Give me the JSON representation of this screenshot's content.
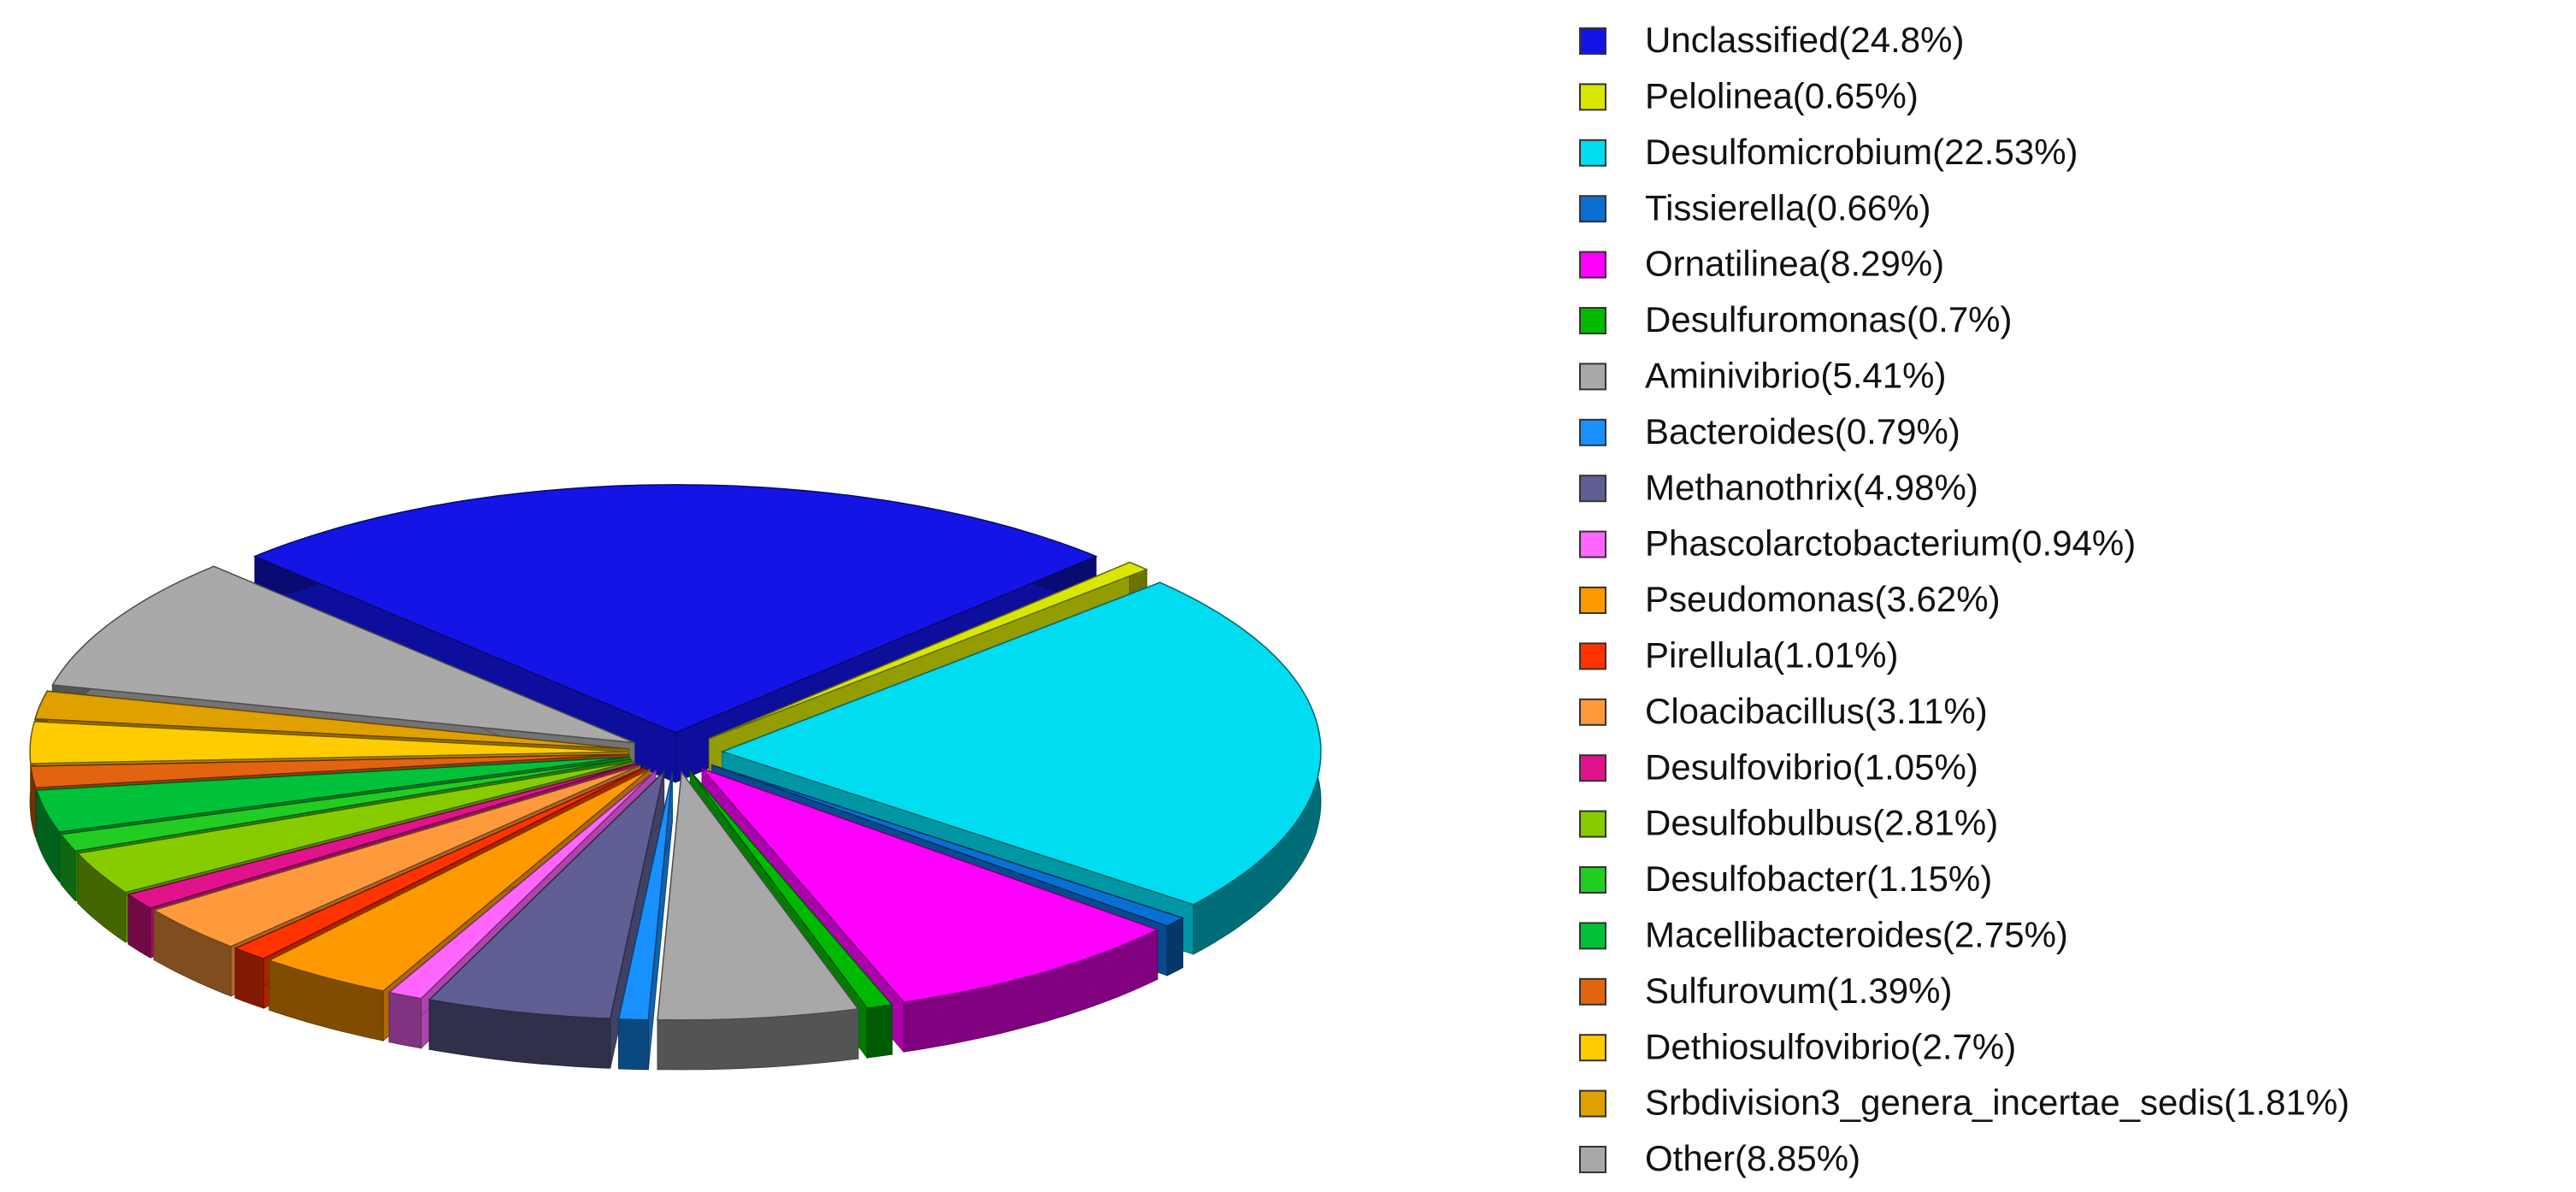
{
  "chart_data": {
    "type": "pie",
    "categories": [
      "Unclassified(24.8%)",
      "Pelolinea(0.65%)",
      "Desulfomicrobium(22.53%)",
      "Tissierella(0.66%)",
      "Ornatilinea(8.29%)",
      "Desulfuromonas(0.7%)",
      "Aminivibrio(5.41%)",
      "Bacteroides(0.79%)",
      "Methanothrix(4.98%)",
      "Phascolarctobacterium(0.94%)",
      "Pseudomonas(3.62%)",
      "Pirellula(1.01%)",
      "Cloacibacillus(3.11%)",
      "Desulfovibrio(1.05%)",
      "Desulfobulbus(2.81%)",
      "Desulfobacter(1.15%)",
      "Macellibacteroides(2.75%)",
      "Sulfurovum(1.39%)",
      "Dethiosulfovibrio(2.7%)",
      "Srbdivision3_genera_incertae_sedis(1.81%)",
      "Other(8.85%)"
    ],
    "values": [
      24.8,
      0.65,
      22.53,
      0.66,
      8.29,
      0.7,
      5.41,
      0.79,
      4.98,
      0.94,
      3.62,
      1.01,
      3.11,
      1.05,
      2.81,
      1.15,
      2.75,
      1.39,
      2.7,
      1.81,
      8.85
    ],
    "colors": [
      "#1414e6",
      "#d8e600",
      "#00dcf0",
      "#0a6fd2",
      "#ff00ff",
      "#00b800",
      "#a8a8a8",
      "#1890ff",
      "#5f5f94",
      "#ff66ff",
      "#ff9900",
      "#ff3300",
      "#ff9a3c",
      "#e0128c",
      "#86cc00",
      "#22cc22",
      "#00c23a",
      "#e26410",
      "#ffcc00",
      "#e0a000",
      "#a9a9a9"
    ],
    "legend": "right"
  }
}
